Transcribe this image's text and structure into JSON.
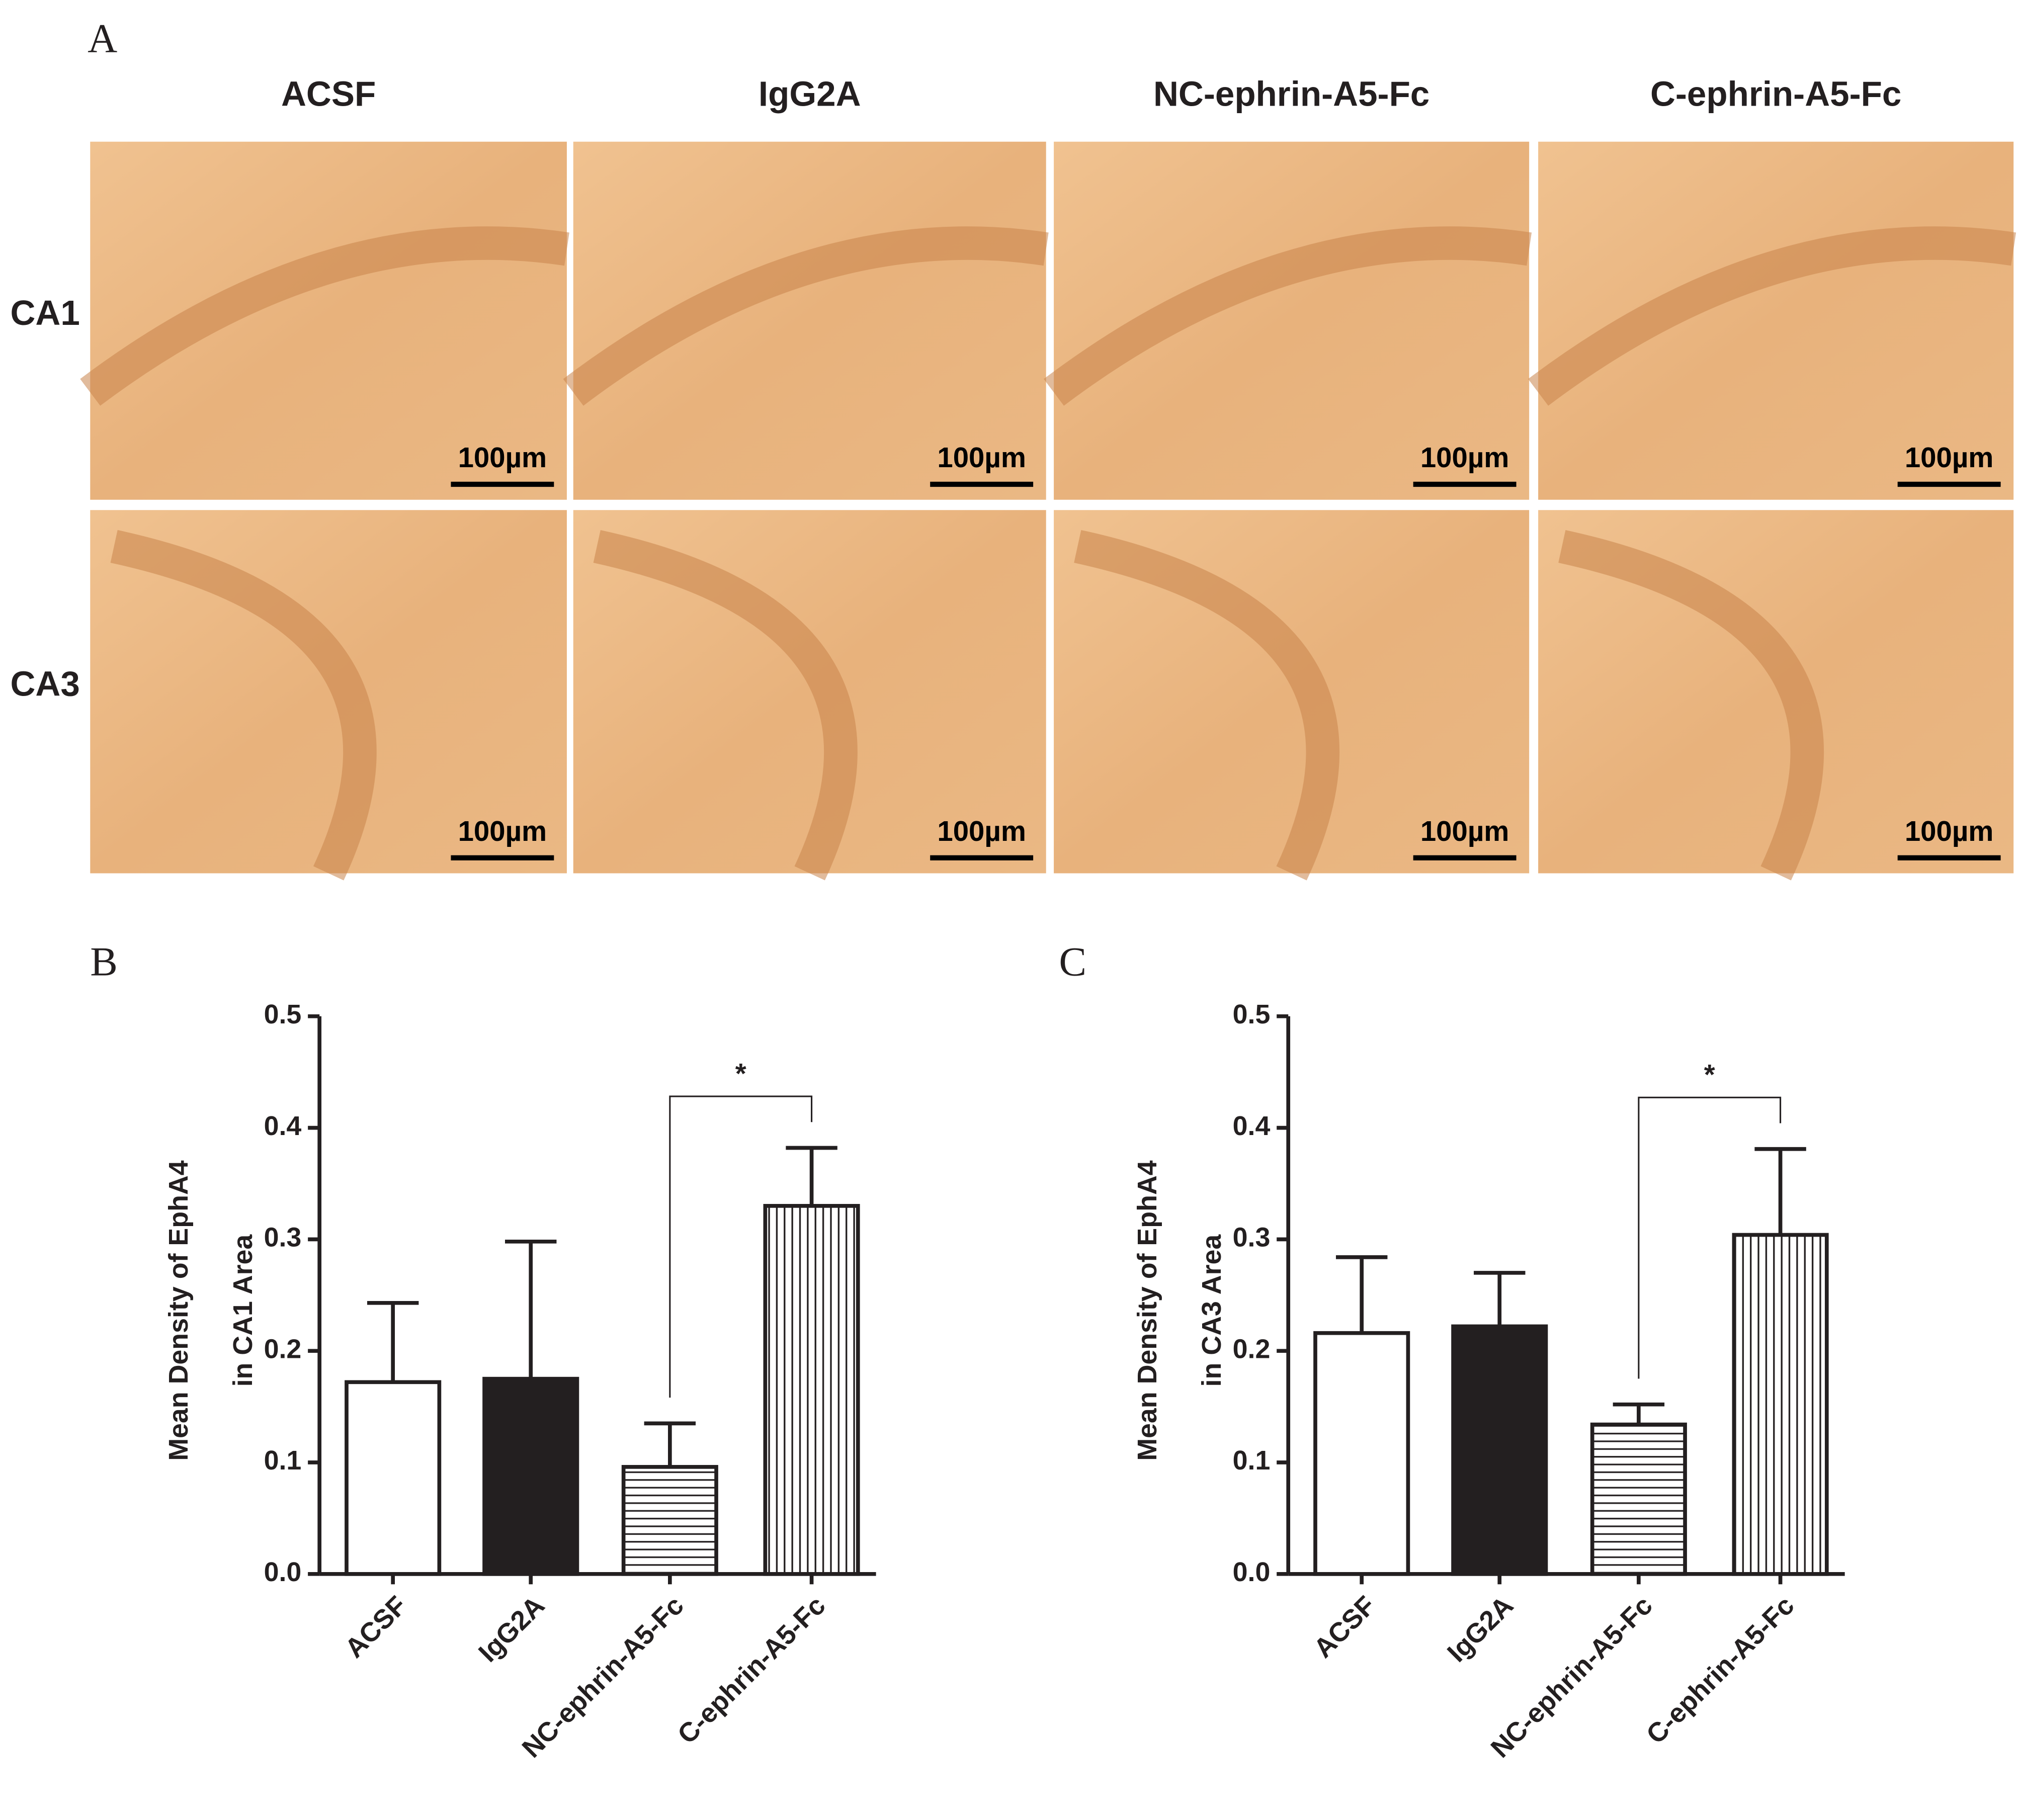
{
  "panel_a": {
    "label": "A",
    "columns": [
      "ACSF",
      "IgG2A",
      "NC-ephrin-A5-Fc",
      "C-ephrin-A5-Fc"
    ],
    "rows": [
      "CA1",
      "CA3"
    ],
    "scale_bar": "100µm"
  },
  "chart_data": [
    {
      "type": "bar",
      "panel_label": "B",
      "y_label": [
        "Mean Density of EphA4",
        "in CA1 Area"
      ],
      "categories": [
        "ACSF",
        "IgG2A",
        "NC-ephrin-A5-Fc",
        "C-ephrin-A5-Fc"
      ],
      "values": [
        0.172,
        0.175,
        0.096,
        0.33
      ],
      "errors": [
        0.071,
        0.123,
        0.039,
        0.052
      ],
      "patterns": [
        "none",
        "solid",
        "horizontal",
        "vertical"
      ],
      "color": "#231f20",
      "ylim": [
        0,
        0.5
      ],
      "yticks": [
        {
          "value": 0,
          "label": "0.0"
        },
        0.1,
        0.2,
        0.3,
        0.4,
        0.5
      ],
      "significance_label": "*"
    },
    {
      "type": "bar",
      "panel_label": "C",
      "y_label": [
        "Mean Density of EphA4",
        "in CA3 Area"
      ],
      "categories": [
        "ACSF",
        "IgG2A",
        "NC-ephrin-A5-Fc",
        "C-ephrin-A5-Fc"
      ],
      "values": [
        0.216,
        0.222,
        0.134,
        0.304
      ],
      "errors": [
        0.068,
        0.048,
        0.018,
        0.077
      ],
      "patterns": [
        "none",
        "solid",
        "horizontal",
        "vertical"
      ],
      "color": "#231f20",
      "ylim": [
        0,
        0.5
      ],
      "yticks": [
        {
          "value": 0,
          "label": "0.0"
        },
        0.1,
        0.2,
        0.3,
        0.4,
        0.5
      ],
      "significance_label": "*"
    }
  ]
}
